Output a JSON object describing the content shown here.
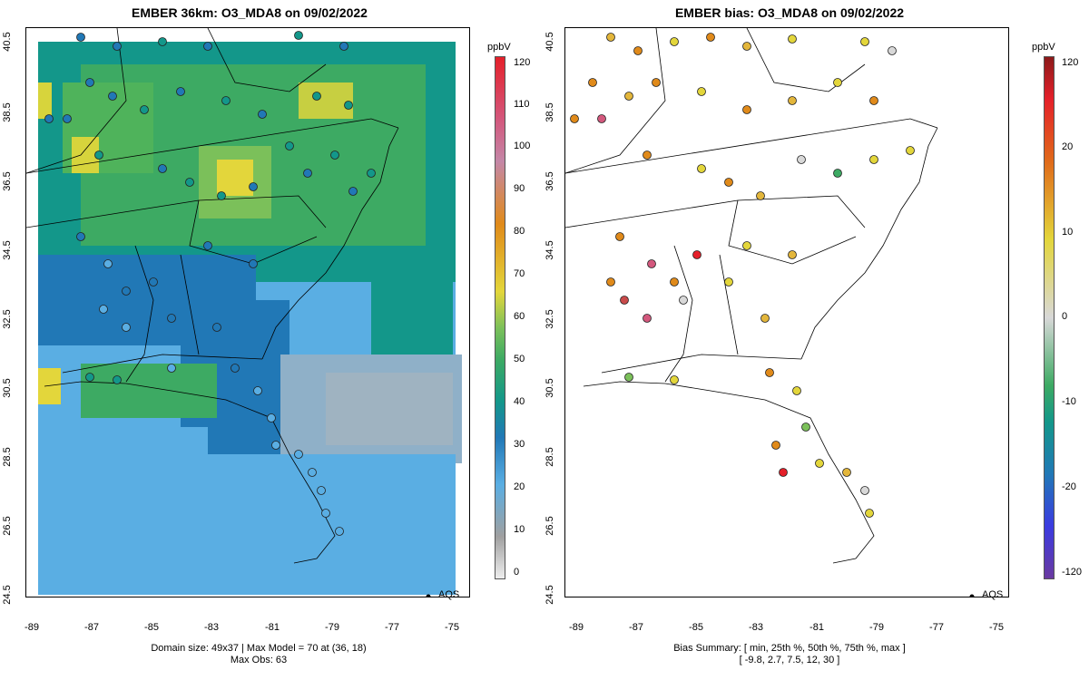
{
  "left_panel": {
    "title": "EMBER 36km: O3_MDA8 on 09/02/2022",
    "units": "ppbV",
    "legend_label": "AQS",
    "footer_line1": "Domain size: 49x37 | Max Model = 70 at (36, 18)",
    "footer_line2": "Max Obs: 63",
    "colorbar_ticks": [
      "120",
      "110",
      "100",
      "90",
      "80",
      "70",
      "60",
      "50",
      "40",
      "30",
      "20",
      "10",
      "0"
    ]
  },
  "right_panel": {
    "title": "EMBER bias: O3_MDA8 on 09/02/2022",
    "units": "ppbV",
    "legend_label": "AQS",
    "footer_line1": "Bias Summary: [ min, 25th %, 50th %, 75th %, max ]",
    "footer_line2": "[ -9.8,   2.7,   7.5,   12,   30 ]",
    "colorbar_ticks": [
      "120",
      "20",
      "10",
      "0",
      "-10",
      "-20",
      "-120"
    ]
  },
  "axes": {
    "y_ticks": [
      "40.5",
      "38.5",
      "36.5",
      "34.5",
      "32.5",
      "30.5",
      "28.5",
      "26.5",
      "24.5"
    ],
    "x_ticks": [
      "-89",
      "-87",
      "-85",
      "-83",
      "-81",
      "-79",
      "-77",
      "-75"
    ]
  },
  "colors": {
    "gray_low": "#c8c8c8",
    "light_blue": "#5aaee3",
    "blue": "#2178b6",
    "teal": "#13978a",
    "green": "#3daa63",
    "light_green": "#7bc05a",
    "yellow": "#e3d63b",
    "orange": "#e08a1a",
    "red": "#e4202a"
  }
}
